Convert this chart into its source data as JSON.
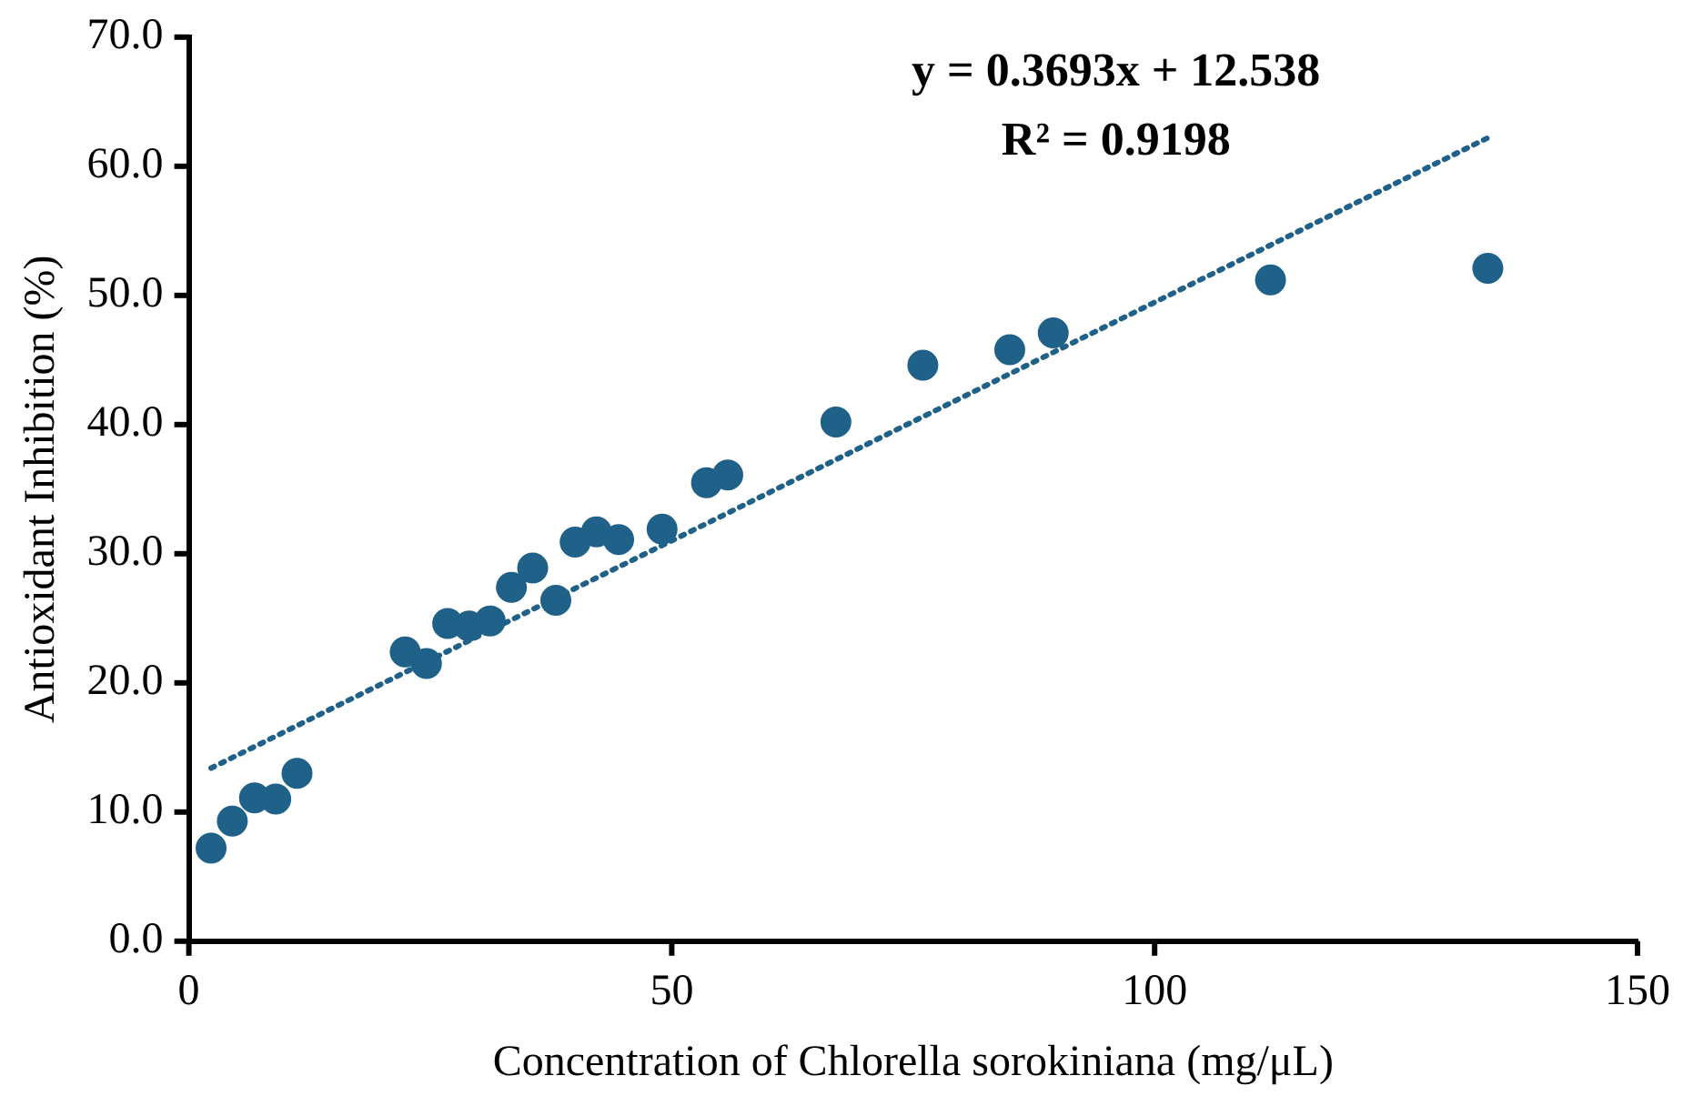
{
  "chart_data": {
    "type": "scatter",
    "xlabel": "Concentration of Chlorella sorokiniana (mg/μL)",
    "ylabel": "Antioxidant Inhibition (%)",
    "annotations": [
      "y = 0.3693x + 12.538",
      "R² = 0.9198"
    ],
    "series": [
      {
        "color": "#1f6189",
        "marker": "circle",
        "x": [
          2.3,
          4.5,
          6.8,
          9,
          11.2,
          22.4,
          24.6,
          26.8,
          29,
          31.2,
          33.4,
          35.6,
          38,
          40,
          42.2,
          44.5,
          49,
          53.6,
          55.8,
          67,
          76,
          85,
          89.5,
          112,
          134.5
        ],
        "values": [
          7.2,
          9.3,
          11.1,
          11,
          13,
          22.4,
          21.5,
          24.6,
          24.4,
          24.8,
          27.4,
          28.9,
          26.4,
          30.9,
          31.7,
          31.1,
          31.9,
          35.5,
          36.1,
          40.2,
          44.6,
          45.8,
          47.1,
          51.2,
          52.1
        ]
      },
      {
        "type": "line",
        "color": "#1f6189",
        "line_style": "dotted",
        "marker": "none",
        "x": [
          2.3,
          134.5
        ],
        "values": [
          13.4,
          62.2
        ]
      }
    ],
    "xlim": [
      0,
      150
    ],
    "xticks": [
      0,
      50,
      100,
      150
    ],
    "ylim": [
      0,
      70
    ],
    "yticks": [
      {
        "value": 0,
        "label": "0.0"
      },
      {
        "value": 10,
        "label": "10.0"
      },
      {
        "value": 20,
        "label": "20.0"
      },
      {
        "value": 30,
        "label": "30.0"
      },
      {
        "value": 40,
        "label": "40.0"
      },
      {
        "value": 50,
        "label": "50.0"
      },
      {
        "value": 60,
        "label": "60.0"
      },
      {
        "value": 70,
        "label": "70.0"
      }
    ],
    "grid": false,
    "legend": false
  }
}
